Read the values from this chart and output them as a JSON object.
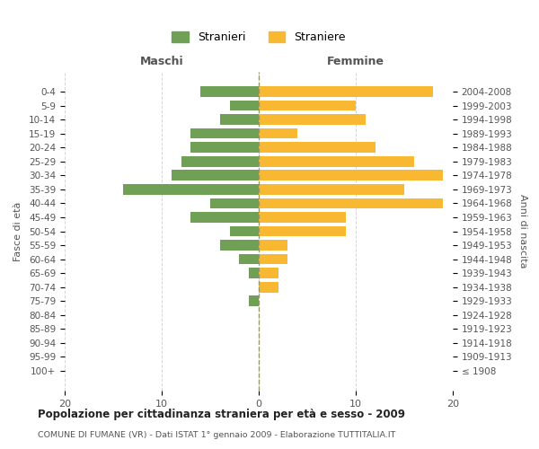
{
  "age_groups": [
    "100+",
    "95-99",
    "90-94",
    "85-89",
    "80-84",
    "75-79",
    "70-74",
    "65-69",
    "60-64",
    "55-59",
    "50-54",
    "45-49",
    "40-44",
    "35-39",
    "30-34",
    "25-29",
    "20-24",
    "15-19",
    "10-14",
    "5-9",
    "0-4"
  ],
  "birth_years": [
    "≤ 1908",
    "1909-1913",
    "1914-1918",
    "1919-1923",
    "1924-1928",
    "1929-1933",
    "1934-1938",
    "1939-1943",
    "1944-1948",
    "1949-1953",
    "1954-1958",
    "1959-1963",
    "1964-1968",
    "1969-1973",
    "1974-1978",
    "1979-1983",
    "1984-1988",
    "1989-1993",
    "1994-1998",
    "1999-2003",
    "2004-2008"
  ],
  "males": [
    0,
    0,
    0,
    0,
    0,
    1,
    0,
    1,
    2,
    4,
    3,
    7,
    5,
    14,
    9,
    8,
    7,
    7,
    4,
    3,
    6
  ],
  "females": [
    0,
    0,
    0,
    0,
    0,
    0,
    2,
    2,
    3,
    3,
    9,
    9,
    19,
    15,
    19,
    16,
    12,
    4,
    11,
    10,
    18
  ],
  "male_color": "#6fa056",
  "female_color": "#f9b832",
  "background_color": "#ffffff",
  "grid_color": "#cccccc",
  "title": "Popolazione per cittadinanza straniera per età e sesso - 2009",
  "subtitle": "COMUNE DI FUMANE (VR) - Dati ISTAT 1° gennaio 2009 - Elaborazione TUTTITALIA.IT",
  "ylabel_left": "Fasce di età",
  "ylabel_right": "Anni di nascita",
  "legend_male": "Stranieri",
  "legend_female": "Straniere",
  "xlim": 20,
  "maschi_label": "Maschi",
  "femmine_label": "Femmine"
}
